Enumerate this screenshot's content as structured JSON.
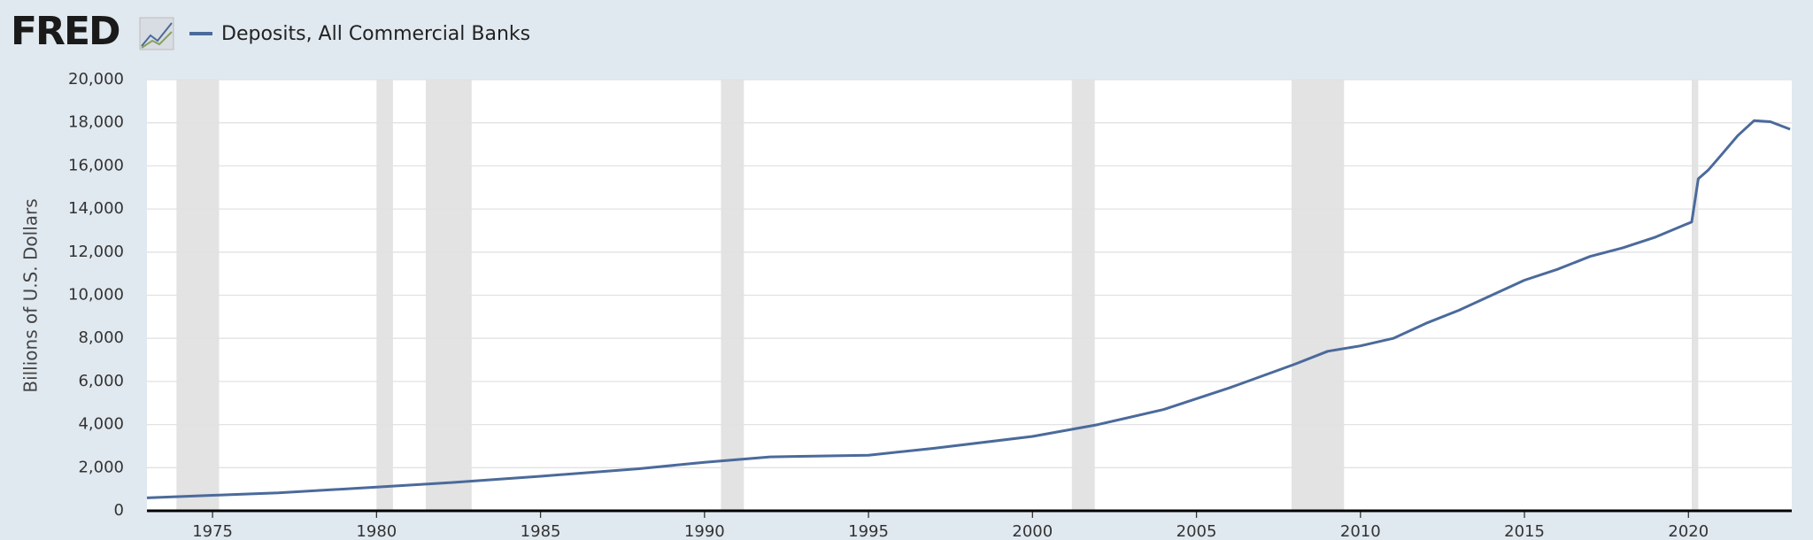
{
  "chart_data": {
    "type": "line",
    "logo": "FRED",
    "y_label": "Billions of U.S. Dollars",
    "series": [
      {
        "name": "Deposits, All Commercial Banks",
        "color": "#4b6a9b",
        "x": [
          1973,
          1975,
          1977,
          1980,
          1982,
          1985,
          1988,
          1990,
          1992,
          1995,
          1997,
          2000,
          2002,
          2004,
          2006,
          2008,
          2009,
          2010,
          2011,
          2012,
          2013,
          2014,
          2015,
          2016,
          2017,
          2018,
          2019,
          2020.1,
          2020.3,
          2020.6,
          2021,
          2021.5,
          2022,
          2022.5,
          2023.1
        ],
        "values": [
          600,
          720,
          830,
          1100,
          1280,
          1600,
          1950,
          2250,
          2500,
          2580,
          2900,
          3450,
          4000,
          4700,
          5700,
          6800,
          7400,
          7650,
          8000,
          8700,
          9300,
          10000,
          10700,
          11200,
          11800,
          12200,
          12700,
          13400,
          15400,
          15800,
          16500,
          17400,
          18100,
          18050,
          17700
        ]
      }
    ],
    "recessions": [
      [
        1973.9,
        1975.2
      ],
      [
        1980.0,
        1980.5
      ],
      [
        1981.5,
        1982.9
      ],
      [
        1990.5,
        1991.2
      ],
      [
        2001.2,
        2001.9
      ],
      [
        2007.9,
        2009.5
      ],
      [
        2020.1,
        2020.3
      ]
    ],
    "xlim": [
      1973,
      2023.15
    ],
    "xticks": [
      1975,
      1980,
      1985,
      1990,
      1995,
      2000,
      2005,
      2010,
      2015,
      2020
    ],
    "ylim": [
      0,
      20000
    ],
    "yticks": [
      0,
      {
        "value": 2000,
        "label": "2,000"
      },
      {
        "value": 4000,
        "label": "4,000"
      },
      {
        "value": 6000,
        "label": "6,000"
      },
      {
        "value": 8000,
        "label": "8,000"
      },
      {
        "value": 10000,
        "label": "10,000"
      },
      {
        "value": 12000,
        "label": "12,000"
      },
      {
        "value": 14000,
        "label": "14,000"
      },
      {
        "value": 16000,
        "label": "16,000"
      },
      {
        "value": 18000,
        "label": "18,000"
      },
      {
        "value": 20000,
        "label": "20,000"
      }
    ],
    "grid": true,
    "recession_color": "#e3e3e3"
  }
}
